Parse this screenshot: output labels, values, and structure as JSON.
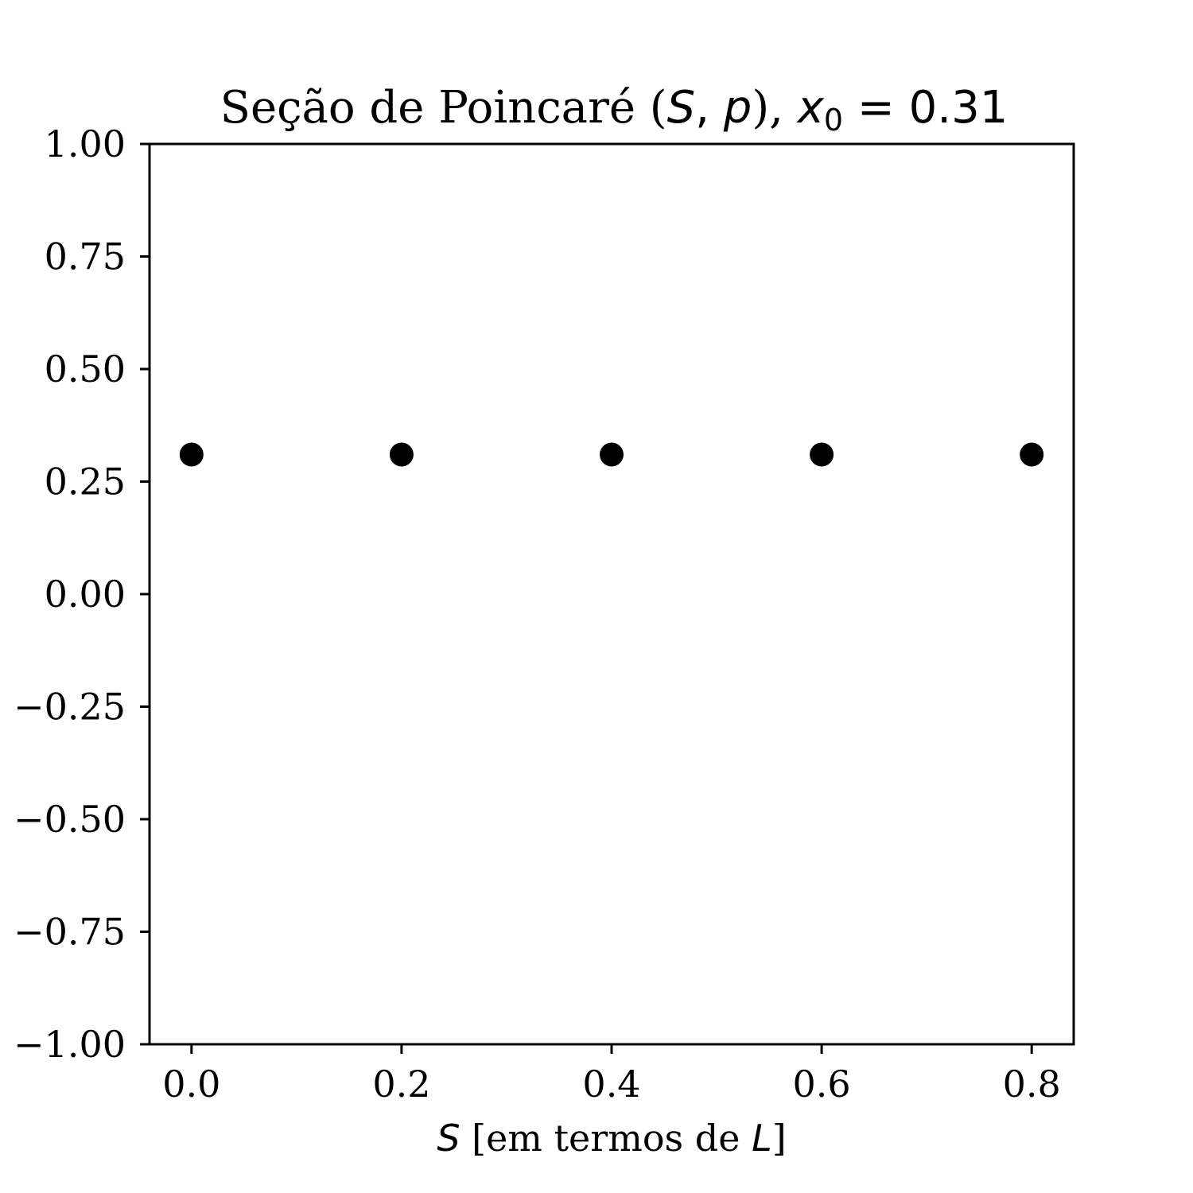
{
  "chart_data": {
    "type": "scatter",
    "title": "Seção de Poincaré (S, p), x0 = 0.31",
    "title_parts": {
      "prefix": "Seção de Poincaré (",
      "var1": "S",
      "comma": ", ",
      "var2": "p",
      "close": "), ",
      "var3": "x",
      "sub": "0",
      "equals": " = 0.31"
    },
    "xlabel": "S [em termos de L]",
    "xlabel_parts": {
      "var": "S",
      "middle": " [em termos de ",
      "unit": "L",
      "end": "]"
    },
    "ylabel": "",
    "xlim": [
      -0.04,
      0.84
    ],
    "ylim": [
      -1.0,
      1.0
    ],
    "xticks": [
      "0.0",
      "0.2",
      "0.4",
      "0.6",
      "0.8"
    ],
    "xtick_values": [
      0.0,
      0.2,
      0.4,
      0.6,
      0.8
    ],
    "yticks": [
      "1.00",
      "0.75",
      "0.50",
      "0.25",
      "0.00",
      "−0.25",
      "−0.50",
      "−0.75",
      "−1.00"
    ],
    "ytick_values": [
      1.0,
      0.75,
      0.5,
      0.25,
      0.0,
      -0.25,
      -0.5,
      -0.75,
      -1.0
    ],
    "grid": false,
    "legend": "none",
    "marker_color": "#000000",
    "series": [
      {
        "x": [
          0.0,
          0.2,
          0.4,
          0.6,
          0.8
        ],
        "y": [
          0.31,
          0.31,
          0.31,
          0.31,
          0.31
        ]
      }
    ]
  }
}
